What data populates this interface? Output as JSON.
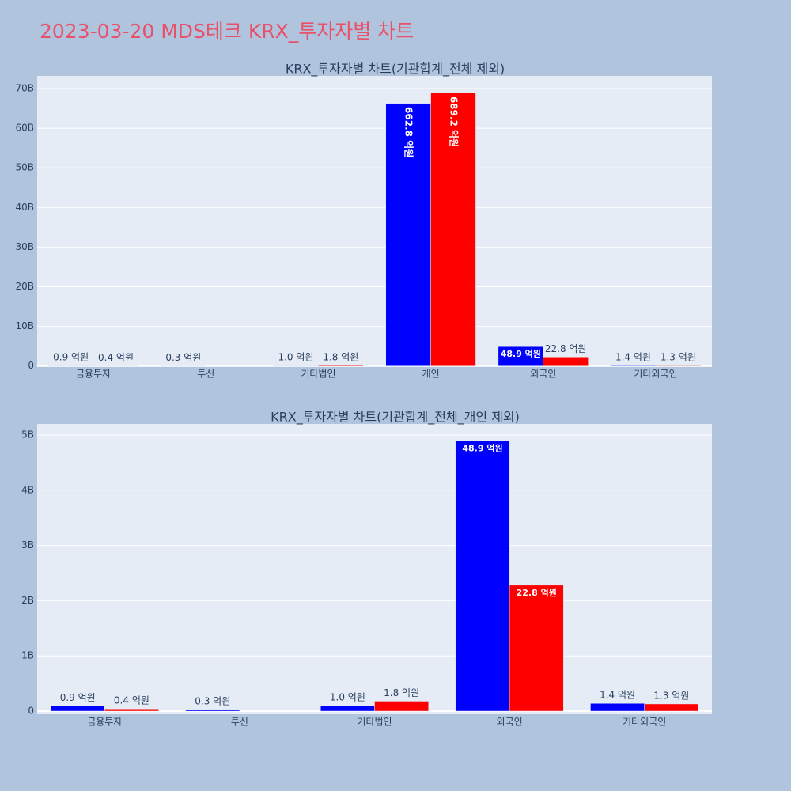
{
  "title": "2023-03-20 MDS테크 KRX_투자자별 차트",
  "chart_data": [
    {
      "type": "bar",
      "title": "KRX_투자자별 차트(기관합계_전체 제외)",
      "categories": [
        "금융투자",
        "투신",
        "기타법인",
        "개인",
        "외국인",
        "기타외국인"
      ],
      "series": [
        {
          "color": "blue",
          "values": [
            90000000,
            30000000,
            100000000,
            66280000000,
            4890000000,
            140000000
          ],
          "value_labels": [
            "0.9 억원",
            "0.3 억원",
            "1.0 억원",
            "662.8 억원",
            "48.9 억원",
            "1.4 억원"
          ]
        },
        {
          "color": "red",
          "values": [
            40000000,
            null,
            180000000,
            68920000000,
            2280000000,
            130000000
          ],
          "value_labels": [
            "0.4 억원",
            null,
            "1.8 억원",
            "689.2 억원",
            "22.8 억원",
            "1.3 억원"
          ]
        }
      ],
      "ylim": [
        -60000000,
        73200000000
      ],
      "yticks": [
        0,
        {
          "value": 10000000000,
          "label": "10B"
        },
        {
          "value": 20000000000,
          "label": "20B"
        },
        {
          "value": 30000000000,
          "label": "30B"
        },
        {
          "value": 40000000000,
          "label": "40B"
        },
        {
          "value": 50000000000,
          "label": "50B"
        },
        {
          "value": 60000000000,
          "label": "60B"
        },
        {
          "value": 70000000000,
          "label": "70B"
        }
      ],
      "grid": true
    },
    {
      "type": "bar",
      "title": "KRX_투자자별 차트(기관합계_전체_개인 제외)",
      "categories": [
        "금융투자",
        "투신",
        "기타법인",
        "외국인",
        "기타외국인"
      ],
      "series": [
        {
          "color": "blue",
          "values": [
            90000000,
            30000000,
            100000000,
            4890000000,
            140000000
          ],
          "value_labels": [
            "0.9 억원",
            "0.3 억원",
            "1.0 억원",
            "48.9 억원",
            "1.4 억원"
          ]
        },
        {
          "color": "red",
          "values": [
            40000000,
            null,
            180000000,
            2280000000,
            130000000
          ],
          "value_labels": [
            "0.4 억원",
            null,
            "1.8 억원",
            "22.8 억원",
            "1.3 억원"
          ]
        }
      ],
      "ylim": [
        -57000000,
        5200000000
      ],
      "yticks": [
        0,
        {
          "value": 1000000000,
          "label": "1B"
        },
        {
          "value": 2000000000,
          "label": "2B"
        },
        {
          "value": 3000000000,
          "label": "3B"
        },
        {
          "value": 4000000000,
          "label": "4B"
        },
        {
          "value": 5000000000,
          "label": "5B"
        }
      ],
      "grid": true
    }
  ]
}
